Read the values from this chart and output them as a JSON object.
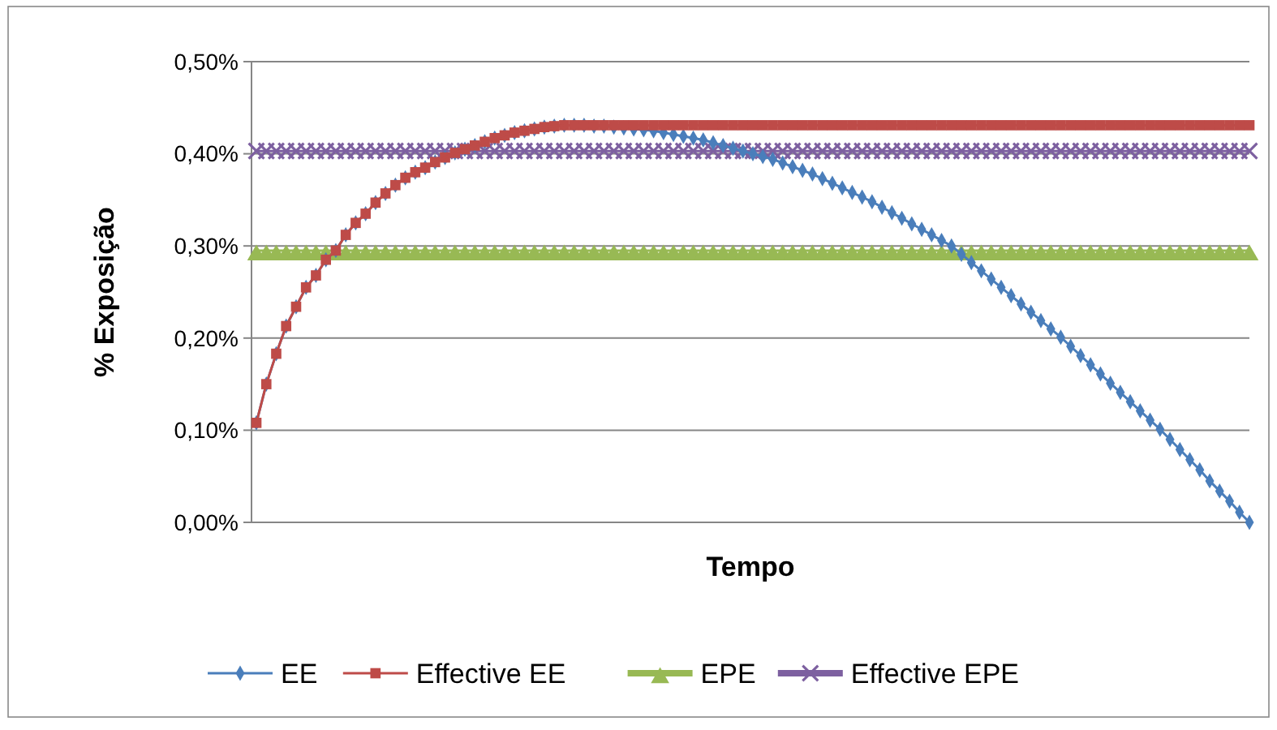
{
  "chart_data": {
    "type": "line",
    "xlabel": "Tempo",
    "ylabel": "% Exposição",
    "categories": [
      null,
      null,
      null,
      null,
      null,
      null,
      null,
      null,
      null,
      null,
      null,
      null,
      null,
      null,
      null,
      null,
      null,
      null,
      null,
      null,
      null,
      null,
      null,
      null,
      null,
      null,
      null,
      null,
      null,
      null,
      null,
      null,
      null,
      null,
      null,
      null,
      null,
      null,
      null,
      null,
      null,
      null,
      null,
      null,
      null,
      null,
      null,
      null,
      null,
      null,
      null,
      null,
      null,
      null,
      null,
      null,
      null,
      null,
      null,
      null,
      null,
      null,
      null,
      null,
      null,
      null,
      null,
      null,
      null,
      null,
      null,
      null,
      null,
      null,
      null,
      null,
      null,
      null,
      null,
      null,
      null,
      null,
      null,
      null,
      null,
      null,
      null,
      null,
      null,
      null,
      null,
      null,
      null,
      null,
      null,
      null,
      null,
      null,
      null,
      null,
      null
    ],
    "ylim": [
      0,
      0.5
    ],
    "yticks": [
      {
        "value": 0,
        "label": "0,00%"
      },
      {
        "value": 0.1,
        "label": "0,10%"
      },
      {
        "value": 0.2,
        "label": "0,20%"
      },
      {
        "value": 0.3,
        "label": "0,30%"
      },
      {
        "value": 0.4,
        "label": "0,40%"
      },
      {
        "value": 0.5,
        "label": "0,50%"
      }
    ],
    "grid": "y",
    "legend": "bottom",
    "line_style": "solid",
    "series": [
      {
        "name": "EE",
        "color": "#4a7ebb",
        "marker": "diamond",
        "values": [
          0.108,
          0.15,
          0.183,
          0.213,
          0.234,
          0.255,
          0.268,
          0.285,
          0.295,
          0.312,
          0.325,
          0.335,
          0.347,
          0.357,
          0.366,
          0.374,
          0.38,
          0.385,
          0.391,
          0.396,
          0.401,
          0.405,
          0.409,
          0.413,
          0.417,
          0.42,
          0.423,
          0.425,
          0.427,
          0.429,
          0.43,
          0.431,
          0.431,
          0.431,
          0.43,
          0.43,
          0.429,
          0.428,
          0.427,
          0.426,
          0.425,
          0.423,
          0.421,
          0.419,
          0.417,
          0.415,
          0.412,
          0.409,
          0.406,
          0.403,
          0.4,
          0.397,
          0.394,
          0.39,
          0.386,
          0.382,
          0.378,
          0.373,
          0.368,
          0.363,
          0.358,
          0.353,
          0.348,
          0.342,
          0.336,
          0.33,
          0.324,
          0.318,
          0.312,
          0.306,
          0.3,
          0.291,
          0.282,
          0.273,
          0.264,
          0.255,
          0.246,
          0.237,
          0.228,
          0.219,
          0.21,
          0.201,
          0.191,
          0.181,
          0.171,
          0.161,
          0.151,
          0.141,
          0.131,
          0.121,
          0.111,
          0.101,
          0.09,
          0.079,
          0.068,
          0.057,
          0.045,
          0.034,
          0.023,
          0.011,
          0.0
        ]
      },
      {
        "name": "Effective EE",
        "color": "#be4b48",
        "marker": "square",
        "values": [
          0.108,
          0.15,
          0.183,
          0.213,
          0.234,
          0.255,
          0.268,
          0.285,
          0.295,
          0.312,
          0.325,
          0.335,
          0.347,
          0.357,
          0.366,
          0.374,
          0.38,
          0.385,
          0.391,
          0.396,
          0.401,
          0.405,
          0.409,
          0.413,
          0.417,
          0.42,
          0.423,
          0.425,
          0.427,
          0.429,
          0.43,
          0.431,
          0.431,
          0.431,
          0.431,
          0.431,
          0.431,
          0.431,
          0.431,
          0.431,
          0.431,
          0.431,
          0.431,
          0.431,
          0.431,
          0.431,
          0.431,
          0.431,
          0.431,
          0.431,
          0.431,
          0.431,
          0.431,
          0.431,
          0.431,
          0.431,
          0.431,
          0.431,
          0.431,
          0.431,
          0.431,
          0.431,
          0.431,
          0.431,
          0.431,
          0.431,
          0.431,
          0.431,
          0.431,
          0.431,
          0.431,
          0.431,
          0.431,
          0.431,
          0.431,
          0.431,
          0.431,
          0.431,
          0.431,
          0.431,
          0.431,
          0.431,
          0.431,
          0.431,
          0.431,
          0.431,
          0.431,
          0.431,
          0.431,
          0.431,
          0.431,
          0.431,
          0.431,
          0.431,
          0.431,
          0.431,
          0.431,
          0.431,
          0.431,
          0.431,
          0.431
        ]
      },
      {
        "name": "EPE",
        "color": "#98b954",
        "marker": "triangle",
        "values": [
          0.295,
          0.295,
          0.295,
          0.295,
          0.295,
          0.295,
          0.295,
          0.295,
          0.295,
          0.295,
          0.295,
          0.295,
          0.295,
          0.295,
          0.295,
          0.295,
          0.295,
          0.295,
          0.295,
          0.295,
          0.295,
          0.295,
          0.295,
          0.295,
          0.295,
          0.295,
          0.295,
          0.295,
          0.295,
          0.295,
          0.295,
          0.295,
          0.295,
          0.295,
          0.295,
          0.295,
          0.295,
          0.295,
          0.295,
          0.295,
          0.295,
          0.295,
          0.295,
          0.295,
          0.295,
          0.295,
          0.295,
          0.295,
          0.295,
          0.295,
          0.295,
          0.295,
          0.295,
          0.295,
          0.295,
          0.295,
          0.295,
          0.295,
          0.295,
          0.295,
          0.295,
          0.295,
          0.295,
          0.295,
          0.295,
          0.295,
          0.295,
          0.295,
          0.295,
          0.295,
          0.295,
          0.295,
          0.295,
          0.295,
          0.295,
          0.295,
          0.295,
          0.295,
          0.295,
          0.295,
          0.295,
          0.295,
          0.295,
          0.295,
          0.295,
          0.295,
          0.295,
          0.295,
          0.295,
          0.295,
          0.295,
          0.295,
          0.295,
          0.295,
          0.295,
          0.295,
          0.295,
          0.295,
          0.295,
          0.295,
          0.295
        ]
      },
      {
        "name": "Effective EPE",
        "color": "#7d60a0",
        "marker": "cross",
        "values": [
          0.403,
          0.403,
          0.403,
          0.403,
          0.403,
          0.403,
          0.403,
          0.403,
          0.403,
          0.403,
          0.403,
          0.403,
          0.403,
          0.403,
          0.403,
          0.403,
          0.403,
          0.403,
          0.403,
          0.403,
          0.403,
          0.403,
          0.403,
          0.403,
          0.403,
          0.403,
          0.403,
          0.403,
          0.403,
          0.403,
          0.403,
          0.403,
          0.403,
          0.403,
          0.403,
          0.403,
          0.403,
          0.403,
          0.403,
          0.403,
          0.403,
          0.403,
          0.403,
          0.403,
          0.403,
          0.403,
          0.403,
          0.403,
          0.403,
          0.403,
          0.403,
          0.403,
          0.403,
          0.403,
          0.403,
          0.403,
          0.403,
          0.403,
          0.403,
          0.403,
          0.403,
          0.403,
          0.403,
          0.403,
          0.403,
          0.403,
          0.403,
          0.403,
          0.403,
          0.403,
          0.403,
          0.403,
          0.403,
          0.403,
          0.403,
          0.403,
          0.403,
          0.403,
          0.403,
          0.403,
          0.403,
          0.403,
          0.403,
          0.403,
          0.403,
          0.403,
          0.403,
          0.403,
          0.403,
          0.403,
          0.403,
          0.403,
          0.403,
          0.403,
          0.403,
          0.403,
          0.403,
          0.403,
          0.403,
          0.403,
          0.403
        ]
      }
    ]
  }
}
